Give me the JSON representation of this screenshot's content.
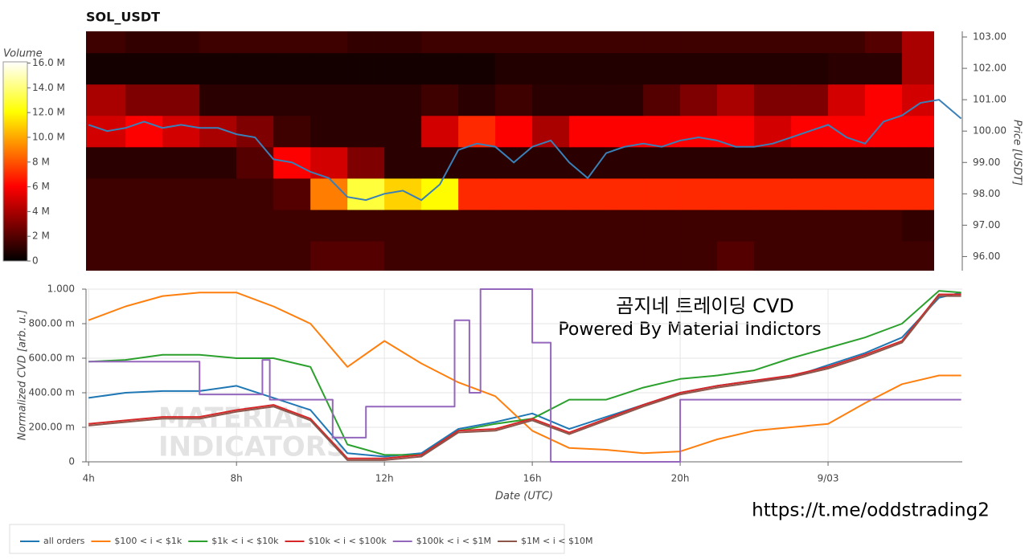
{
  "chart_data": [
    {
      "type": "heatmap",
      "title": "SOL_USDT",
      "colorbar_label": "Volume",
      "colormap": "hot",
      "x": [
        3.93,
        5,
        6,
        7,
        8,
        9,
        10,
        11,
        12,
        13,
        14,
        15,
        16,
        17,
        18,
        19,
        20,
        21,
        22,
        23,
        24,
        25,
        26,
        26.87
      ],
      "y": [
        96,
        97,
        98,
        99,
        100,
        101,
        102,
        103
      ],
      "z": [
        [
          1500000,
          1500000,
          1500000,
          1500000,
          1500000,
          1500000,
          2000000,
          2000000,
          1500000,
          1500000,
          1500000,
          1500000,
          1500000,
          1500000,
          1500000,
          1500000,
          1500000,
          2000000,
          1500000,
          1500000,
          1500000,
          1500000,
          1500000
        ],
        [
          1500000,
          1500000,
          1500000,
          1500000,
          1500000,
          1500000,
          1500000,
          1500000,
          1500000,
          1500000,
          1500000,
          1500000,
          1500000,
          1500000,
          1500000,
          1500000,
          1500000,
          1500000,
          1500000,
          1500000,
          1500000,
          1500000,
          1200000
        ],
        [
          1500000,
          1500000,
          1500000,
          1500000,
          1500000,
          2000000,
          9000000,
          13000000,
          11000000,
          12000000,
          7000000,
          7000000,
          7000000,
          7000000,
          7000000,
          7000000,
          7000000,
          7000000,
          7000000,
          7000000,
          7000000,
          7000000,
          7000000
        ],
        [
          1000000,
          1000000,
          1000000,
          1000000,
          2000000,
          6000000,
          5000000,
          3000000,
          1000000,
          1000000,
          1000000,
          1000000,
          1000000,
          1000000,
          1000000,
          1000000,
          1000000,
          1000000,
          1000000,
          1000000,
          1000000,
          1000000,
          1000000
        ],
        [
          5000000,
          6000000,
          5000000,
          4000000,
          3000000,
          1500000,
          1000000,
          1000000,
          1000000,
          5000000,
          7000000,
          6000000,
          4000000,
          6000000,
          6000000,
          6000000,
          6000000,
          6000000,
          5000000,
          6000000,
          6000000,
          6000000,
          6000000
        ],
        [
          4000000,
          3000000,
          3000000,
          1000000,
          1000000,
          1000000,
          1000000,
          1000000,
          1000000,
          1500000,
          1000000,
          1500000,
          1000000,
          1000000,
          1000000,
          2000000,
          3000000,
          4000000,
          3000000,
          3000000,
          5000000,
          6000000,
          5000000
        ],
        [
          500000,
          500000,
          500000,
          500000,
          500000,
          500000,
          500000,
          500000,
          500000,
          500000,
          500000,
          800000,
          800000,
          800000,
          800000,
          800000,
          800000,
          800000,
          800000,
          800000,
          1000000,
          1000000,
          4000000
        ],
        [
          1500000,
          1200000,
          1200000,
          1500000,
          1500000,
          1500000,
          1500000,
          1200000,
          1200000,
          1500000,
          1500000,
          1500000,
          1500000,
          1500000,
          1500000,
          1500000,
          1500000,
          1500000,
          1500000,
          1500000,
          1500000,
          2000000,
          4000000
        ]
      ],
      "clim": [
        0,
        16100000
      ],
      "cticks": [
        0,
        {
          "value": 2000000,
          "label": "2 M"
        },
        {
          "value": 4000000,
          "label": "4 M"
        },
        {
          "value": 6000000,
          "label": "6 M"
        },
        {
          "value": 8000000,
          "label": "8 M"
        },
        {
          "value": 10000000,
          "label": "10.0 M"
        },
        {
          "value": 12000000,
          "label": "12.0 M"
        },
        {
          "value": 14000000,
          "label": "14.0 M"
        },
        {
          "value": 16000000,
          "label": "16.0 M"
        }
      ],
      "xlim": [
        3.93,
        27.63
      ],
      "y2lim": [
        95.55,
        103.18
      ],
      "y2ticks": [
        {
          "value": 96,
          "label": "96.00"
        },
        {
          "value": 97,
          "label": "97.00"
        },
        {
          "value": 98,
          "label": "98.00"
        },
        {
          "value": 99,
          "label": "99.00"
        },
        {
          "value": 100,
          "label": "100.00"
        },
        {
          "value": 101,
          "label": "101.00"
        },
        {
          "value": 102,
          "label": "102.00"
        },
        {
          "value": 103,
          "label": "103.00"
        }
      ],
      "y2label": "Price [USDT]",
      "series": [
        {
          "color": "#3a80b8",
          "axis": "y2",
          "x": [
            4,
            4.5,
            5,
            5.5,
            6,
            6.5,
            7,
            7.5,
            8,
            8.5,
            9,
            9.5,
            10,
            10.5,
            11,
            11.5,
            12,
            12.5,
            13,
            13.5,
            14,
            14.5,
            15,
            15.5,
            16,
            16.5,
            17,
            17.5,
            18,
            18.5,
            19,
            19.5,
            20,
            20.5,
            21,
            21.5,
            22,
            22.5,
            23,
            23.5,
            24,
            24.5,
            25,
            25.5,
            26,
            26.5,
            27,
            27.6
          ],
          "values": [
            100.2,
            100.0,
            100.1,
            100.3,
            100.1,
            100.2,
            100.1,
            100.1,
            99.9,
            99.8,
            99.1,
            99.0,
            98.7,
            98.5,
            97.9,
            97.8,
            98.0,
            98.1,
            97.8,
            98.3,
            99.4,
            99.6,
            99.5,
            99.0,
            99.5,
            99.7,
            99.0,
            98.5,
            99.3,
            99.5,
            99.6,
            99.5,
            99.7,
            99.8,
            99.7,
            99.5,
            99.5,
            99.6,
            99.8,
            100.0,
            100.2,
            99.8,
            99.6,
            100.3,
            100.5,
            100.9,
            101.0,
            100.4
          ]
        }
      ]
    },
    {
      "type": "line",
      "xlabel": "Date (UTC)",
      "ylabel": "Normalized CVD [arb. u.]",
      "grid": true,
      "legend": "bottom-left",
      "annotations": [
        "곰지네 트레이딩 CVD",
        "Powered By Material Indictors",
        "https://t.me/oddstrading2"
      ],
      "watermark": [
        "MATERIAL",
        "INDICATORS"
      ],
      "x": [
        4,
        5,
        6,
        7,
        8,
        9,
        10,
        11,
        12,
        13,
        14,
        15,
        16,
        17,
        18,
        19,
        20,
        21,
        22,
        23,
        24,
        25,
        26,
        27,
        27.6
      ],
      "xlim": [
        3.93,
        27.63
      ],
      "xticks": [
        {
          "value": 4,
          "label": "4h"
        },
        {
          "value": 8,
          "label": "8h"
        },
        {
          "value": 12,
          "label": "12h"
        },
        {
          "value": 16,
          "label": "16h"
        },
        {
          "value": 20,
          "label": "20h"
        },
        {
          "value": 24,
          "label": "9/03"
        }
      ],
      "ylim": [
        0,
        1
      ],
      "yticks": [
        0,
        {
          "value": 0.2,
          "label": "200.00 m"
        },
        {
          "value": 0.4,
          "label": "400.00 m"
        },
        {
          "value": 0.6,
          "label": "600.00 m"
        },
        {
          "value": 0.8,
          "label": "800.00 m"
        },
        {
          "value": 1,
          "label": "1.000"
        }
      ],
      "series": [
        {
          "name": "all orders",
          "color": "#1f77b4",
          "values": [
            0.37,
            0.4,
            0.41,
            0.41,
            0.44,
            0.37,
            0.3,
            0.05,
            0.03,
            0.05,
            0.19,
            0.23,
            0.28,
            0.19,
            0.26,
            0.33,
            0.4,
            0.44,
            0.47,
            0.49,
            0.56,
            0.63,
            0.72,
            0.95,
            0.98
          ]
        },
        {
          "name": "$100 < i < $1k",
          "color": "#ff7f0e",
          "values": [
            0.82,
            0.9,
            0.96,
            0.98,
            0.98,
            0.9,
            0.8,
            0.55,
            0.7,
            0.57,
            0.46,
            0.38,
            0.18,
            0.08,
            0.07,
            0.05,
            0.06,
            0.13,
            0.18,
            0.2,
            0.22,
            0.34,
            0.45,
            0.5,
            0.5
          ]
        },
        {
          "name": "$1k < i < $10k",
          "color": "#2ca02c",
          "values": [
            0.58,
            0.59,
            0.62,
            0.62,
            0.6,
            0.6,
            0.55,
            0.1,
            0.04,
            0.04,
            0.18,
            0.22,
            0.25,
            0.36,
            0.36,
            0.43,
            0.48,
            0.5,
            0.53,
            0.6,
            0.66,
            0.72,
            0.8,
            0.99,
            0.98
          ]
        },
        {
          "name": "$10k < i < $100k",
          "color": "#d62728",
          "values": [
            0.22,
            0.24,
            0.26,
            0.26,
            0.3,
            0.33,
            0.25,
            0.02,
            0.02,
            0.04,
            0.18,
            0.19,
            0.25,
            0.17,
            0.25,
            0.33,
            0.4,
            0.44,
            0.47,
            0.5,
            0.55,
            0.62,
            0.7,
            0.97,
            0.97
          ]
        },
        {
          "name": "$100k < i < $1M",
          "color": "#9467bd",
          "x": [
            4,
            7,
            7,
            8.7,
            8.7,
            8.9,
            8.9,
            10.6,
            10.6,
            11.5,
            11.5,
            13.9,
            13.9,
            14.3,
            14.3,
            14.6,
            14.6,
            16,
            16,
            16.5,
            16.5,
            20,
            20,
            27.6
          ],
          "values": [
            0.58,
            0.58,
            0.39,
            0.39,
            0.59,
            0.59,
            0.36,
            0.36,
            0.14,
            0.14,
            0.32,
            0.32,
            0.82,
            0.82,
            0.4,
            0.4,
            1.0,
            1.0,
            0.69,
            0.69,
            0,
            0,
            0.36,
            0.36
          ]
        },
        {
          "name": "$1M < i < $10M",
          "color": "#8c564b",
          "values": [
            0.21,
            0.23,
            0.25,
            0.25,
            0.29,
            0.32,
            0.24,
            0.01,
            0.01,
            0.03,
            0.17,
            0.18,
            0.24,
            0.16,
            0.24,
            0.32,
            0.39,
            0.43,
            0.46,
            0.49,
            0.54,
            0.61,
            0.69,
            0.96,
            0.96
          ]
        }
      ]
    }
  ]
}
